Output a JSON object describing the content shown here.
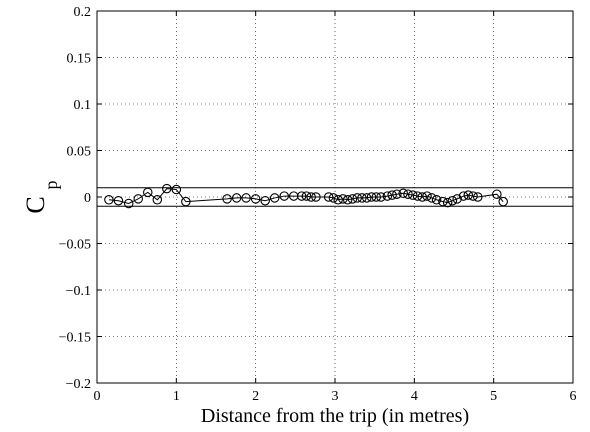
{
  "chart_data": {
    "type": "scatter",
    "title": "",
    "xlabel": "Distance from the trip (in metres)",
    "ylabel": {
      "main": "C",
      "subscript": "p"
    },
    "xlim": [
      0,
      6
    ],
    "ylim": [
      -0.2,
      0.2
    ],
    "xticks": [
      0,
      1,
      2,
      3,
      4,
      5,
      6
    ],
    "xtick_labels": [
      "0",
      "1",
      "2",
      "3",
      "4",
      "5",
      "6"
    ],
    "yticks": [
      -0.2,
      -0.15,
      -0.1,
      -0.05,
      0,
      0.05,
      0.1,
      0.15,
      0.2
    ],
    "ytick_labels": [
      "−0.2",
      "−0.15",
      "−0.1",
      "−0.05",
      "0",
      "0.05",
      "0.1",
      "0.15",
      "0.2"
    ],
    "grid": true,
    "reference_lines": [
      0.01,
      -0.01
    ],
    "series": [
      {
        "marker": "circle",
        "line": true,
        "x": [
          0.15,
          0.27,
          0.4,
          0.52,
          0.64,
          0.76,
          0.88,
          1.0,
          1.12,
          1.64,
          1.76,
          1.88,
          2.0,
          2.12,
          2.24,
          2.36,
          2.48,
          2.58,
          2.64,
          2.7,
          2.76,
          2.92,
          2.98,
          3.04,
          3.1,
          3.16,
          3.22,
          3.28,
          3.34,
          3.4,
          3.46,
          3.52,
          3.58,
          3.66,
          3.72,
          3.78,
          3.86,
          3.92,
          3.98,
          4.04,
          4.1,
          4.16,
          4.22,
          4.28,
          4.36,
          4.42,
          4.48,
          4.54,
          4.62,
          4.68,
          4.74,
          4.8,
          5.04,
          5.12
        ],
        "y": [
          -0.003,
          -0.004,
          -0.007,
          -0.002,
          0.005,
          -0.003,
          0.009,
          0.008,
          -0.005,
          -0.002,
          -0.001,
          -0.001,
          -0.002,
          -0.004,
          -0.001,
          0.001,
          0.001,
          0.001,
          0.001,
          0.0,
          0.0,
          0.0,
          -0.001,
          -0.003,
          -0.002,
          -0.003,
          -0.002,
          -0.001,
          -0.001,
          -0.001,
          0.0,
          0.0,
          0.0,
          0.001,
          0.002,
          0.003,
          0.004,
          0.003,
          0.002,
          0.001,
          0.0,
          0.001,
          -0.001,
          -0.003,
          -0.005,
          -0.006,
          -0.004,
          -0.002,
          0.001,
          0.002,
          0.001,
          0.0,
          0.003,
          -0.005
        ]
      }
    ]
  }
}
